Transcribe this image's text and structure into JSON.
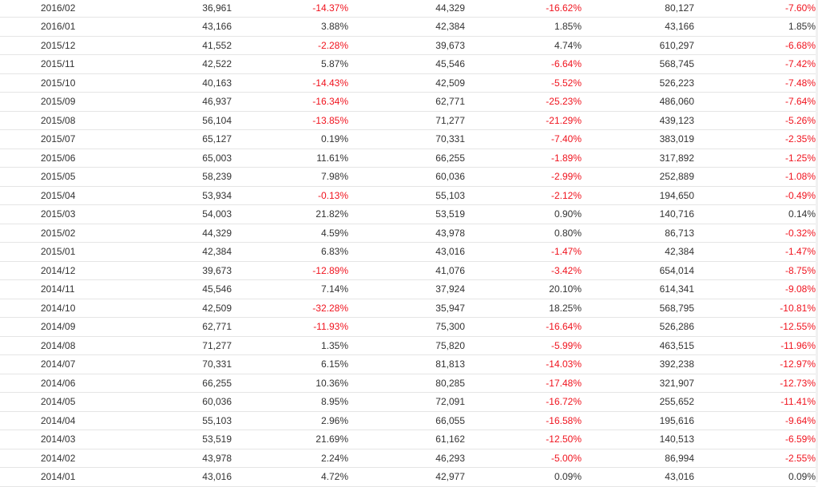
{
  "colors": {
    "negative": "#f0131e",
    "text": "#333333",
    "divider": "#e5e5e5"
  },
  "rows": [
    {
      "date": "2016/02",
      "c1": "36,961",
      "p1": "-14.37%",
      "c2": "44,329",
      "p2": "-16.62%",
      "c3": "80,127",
      "p3": "-7.60%"
    },
    {
      "date": "2016/01",
      "c1": "43,166",
      "p1": "3.88%",
      "c2": "42,384",
      "p2": "1.85%",
      "c3": "43,166",
      "p3": "1.85%"
    },
    {
      "date": "2015/12",
      "c1": "41,552",
      "p1": "-2.28%",
      "c2": "39,673",
      "p2": "4.74%",
      "c3": "610,297",
      "p3": "-6.68%"
    },
    {
      "date": "2015/11",
      "c1": "42,522",
      "p1": "5.87%",
      "c2": "45,546",
      "p2": "-6.64%",
      "c3": "568,745",
      "p3": "-7.42%"
    },
    {
      "date": "2015/10",
      "c1": "40,163",
      "p1": "-14.43%",
      "c2": "42,509",
      "p2": "-5.52%",
      "c3": "526,223",
      "p3": "-7.48%"
    },
    {
      "date": "2015/09",
      "c1": "46,937",
      "p1": "-16.34%",
      "c2": "62,771",
      "p2": "-25.23%",
      "c3": "486,060",
      "p3": "-7.64%"
    },
    {
      "date": "2015/08",
      "c1": "56,104",
      "p1": "-13.85%",
      "c2": "71,277",
      "p2": "-21.29%",
      "c3": "439,123",
      "p3": "-5.26%"
    },
    {
      "date": "2015/07",
      "c1": "65,127",
      "p1": "0.19%",
      "c2": "70,331",
      "p2": "-7.40%",
      "c3": "383,019",
      "p3": "-2.35%"
    },
    {
      "date": "2015/06",
      "c1": "65,003",
      "p1": "11.61%",
      "c2": "66,255",
      "p2": "-1.89%",
      "c3": "317,892",
      "p3": "-1.25%"
    },
    {
      "date": "2015/05",
      "c1": "58,239",
      "p1": "7.98%",
      "c2": "60,036",
      "p2": "-2.99%",
      "c3": "252,889",
      "p3": "-1.08%"
    },
    {
      "date": "2015/04",
      "c1": "53,934",
      "p1": "-0.13%",
      "c2": "55,103",
      "p2": "-2.12%",
      "c3": "194,650",
      "p3": "-0.49%"
    },
    {
      "date": "2015/03",
      "c1": "54,003",
      "p1": "21.82%",
      "c2": "53,519",
      "p2": "0.90%",
      "c3": "140,716",
      "p3": "0.14%"
    },
    {
      "date": "2015/02",
      "c1": "44,329",
      "p1": "4.59%",
      "c2": "43,978",
      "p2": "0.80%",
      "c3": "86,713",
      "p3": "-0.32%"
    },
    {
      "date": "2015/01",
      "c1": "42,384",
      "p1": "6.83%",
      "c2": "43,016",
      "p2": "-1.47%",
      "c3": "42,384",
      "p3": "-1.47%"
    },
    {
      "date": "2014/12",
      "c1": "39,673",
      "p1": "-12.89%",
      "c2": "41,076",
      "p2": "-3.42%",
      "c3": "654,014",
      "p3": "-8.75%"
    },
    {
      "date": "2014/11",
      "c1": "45,546",
      "p1": "7.14%",
      "c2": "37,924",
      "p2": "20.10%",
      "c3": "614,341",
      "p3": "-9.08%"
    },
    {
      "date": "2014/10",
      "c1": "42,509",
      "p1": "-32.28%",
      "c2": "35,947",
      "p2": "18.25%",
      "c3": "568,795",
      "p3": "-10.81%"
    },
    {
      "date": "2014/09",
      "c1": "62,771",
      "p1": "-11.93%",
      "c2": "75,300",
      "p2": "-16.64%",
      "c3": "526,286",
      "p3": "-12.55%"
    },
    {
      "date": "2014/08",
      "c1": "71,277",
      "p1": "1.35%",
      "c2": "75,820",
      "p2": "-5.99%",
      "c3": "463,515",
      "p3": "-11.96%"
    },
    {
      "date": "2014/07",
      "c1": "70,331",
      "p1": "6.15%",
      "c2": "81,813",
      "p2": "-14.03%",
      "c3": "392,238",
      "p3": "-12.97%"
    },
    {
      "date": "2014/06",
      "c1": "66,255",
      "p1": "10.36%",
      "c2": "80,285",
      "p2": "-17.48%",
      "c3": "321,907",
      "p3": "-12.73%"
    },
    {
      "date": "2014/05",
      "c1": "60,036",
      "p1": "8.95%",
      "c2": "72,091",
      "p2": "-16.72%",
      "c3": "255,652",
      "p3": "-11.41%"
    },
    {
      "date": "2014/04",
      "c1": "55,103",
      "p1": "2.96%",
      "c2": "66,055",
      "p2": "-16.58%",
      "c3": "195,616",
      "p3": "-9.64%"
    },
    {
      "date": "2014/03",
      "c1": "53,519",
      "p1": "21.69%",
      "c2": "61,162",
      "p2": "-12.50%",
      "c3": "140,513",
      "p3": "-6.59%"
    },
    {
      "date": "2014/02",
      "c1": "43,978",
      "p1": "2.24%",
      "c2": "46,293",
      "p2": "-5.00%",
      "c3": "86,994",
      "p3": "-2.55%"
    },
    {
      "date": "2014/01",
      "c1": "43,016",
      "p1": "4.72%",
      "c2": "42,977",
      "p2": "0.09%",
      "c3": "43,016",
      "p3": "0.09%"
    }
  ]
}
